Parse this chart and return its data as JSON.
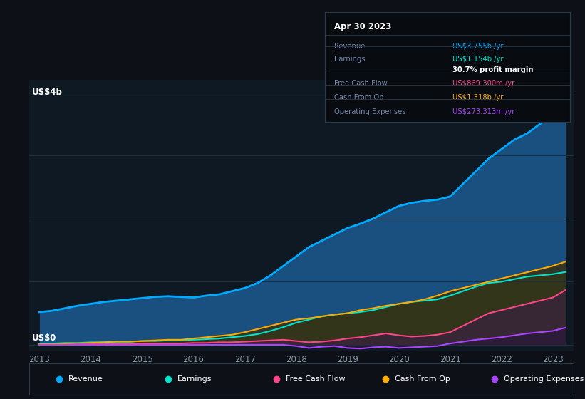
{
  "background_color": "#0d1117",
  "chart_bg_color": "#0f1923",
  "grid_color": "#1e2d3d",
  "text_color": "#8899a6",
  "years": [
    2013,
    2013.25,
    2013.5,
    2013.75,
    2014,
    2014.25,
    2014.5,
    2014.75,
    2015,
    2015.25,
    2015.5,
    2015.75,
    2016,
    2016.25,
    2016.5,
    2016.75,
    2017,
    2017.25,
    2017.5,
    2017.75,
    2018,
    2018.25,
    2018.5,
    2018.75,
    2019,
    2019.25,
    2019.5,
    2019.75,
    2020,
    2020.25,
    2020.5,
    2020.75,
    2021,
    2021.25,
    2021.5,
    2021.75,
    2022,
    2022.25,
    2022.5,
    2022.75,
    2023,
    2023.25
  ],
  "revenue": [
    0.52,
    0.54,
    0.58,
    0.62,
    0.65,
    0.68,
    0.7,
    0.72,
    0.74,
    0.76,
    0.77,
    0.76,
    0.75,
    0.78,
    0.8,
    0.85,
    0.9,
    0.98,
    1.1,
    1.25,
    1.4,
    1.55,
    1.65,
    1.75,
    1.85,
    1.92,
    2.0,
    2.1,
    2.2,
    2.25,
    2.28,
    2.3,
    2.35,
    2.55,
    2.75,
    2.95,
    3.1,
    3.25,
    3.35,
    3.5,
    3.65,
    3.755
  ],
  "earnings": [
    0.02,
    0.02,
    0.03,
    0.03,
    0.04,
    0.04,
    0.05,
    0.05,
    0.06,
    0.06,
    0.07,
    0.07,
    0.08,
    0.09,
    0.1,
    0.12,
    0.14,
    0.17,
    0.22,
    0.28,
    0.35,
    0.4,
    0.45,
    0.48,
    0.5,
    0.52,
    0.55,
    0.6,
    0.65,
    0.68,
    0.7,
    0.72,
    0.78,
    0.85,
    0.92,
    0.98,
    1.0,
    1.04,
    1.08,
    1.1,
    1.12,
    1.154
  ],
  "free_cash_flow": [
    0.0,
    0.0,
    0.0,
    0.01,
    0.01,
    0.01,
    0.01,
    0.01,
    0.02,
    0.02,
    0.02,
    0.02,
    0.03,
    0.03,
    0.04,
    0.04,
    0.05,
    0.06,
    0.07,
    0.08,
    0.06,
    0.04,
    0.05,
    0.07,
    0.1,
    0.12,
    0.15,
    0.18,
    0.15,
    0.13,
    0.14,
    0.16,
    0.2,
    0.3,
    0.4,
    0.5,
    0.55,
    0.6,
    0.65,
    0.7,
    0.75,
    0.869
  ],
  "cash_from_op": [
    0.01,
    0.01,
    0.02,
    0.02,
    0.03,
    0.04,
    0.05,
    0.05,
    0.06,
    0.07,
    0.08,
    0.08,
    0.1,
    0.12,
    0.14,
    0.16,
    0.2,
    0.25,
    0.3,
    0.35,
    0.4,
    0.42,
    0.45,
    0.48,
    0.5,
    0.55,
    0.58,
    0.62,
    0.65,
    0.68,
    0.72,
    0.78,
    0.85,
    0.9,
    0.95,
    1.0,
    1.05,
    1.1,
    1.15,
    1.2,
    1.25,
    1.318
  ],
  "operating_expenses": [
    0.0,
    0.0,
    0.0,
    0.0,
    0.0,
    0.0,
    0.0,
    0.0,
    0.0,
    0.0,
    0.0,
    0.0,
    0.0,
    0.0,
    0.0,
    0.0,
    0.0,
    0.0,
    0.0,
    0.0,
    -0.02,
    -0.05,
    -0.03,
    -0.02,
    -0.05,
    -0.06,
    -0.04,
    -0.03,
    -0.05,
    -0.04,
    -0.03,
    -0.02,
    0.02,
    0.05,
    0.08,
    0.1,
    0.12,
    0.15,
    0.18,
    0.2,
    0.22,
    0.273
  ],
  "revenue_color": "#00aaff",
  "revenue_fill": "#1a5080",
  "earnings_color": "#00e5cc",
  "earnings_fill": "#1a4a44",
  "free_cash_flow_color": "#ff4488",
  "free_cash_flow_fill": "#3a2040",
  "cash_from_op_color": "#ffaa00",
  "cash_from_op_fill": "#3a3010",
  "operating_expenses_color": "#aa44ff",
  "operating_expenses_fill": "#2a1a3a",
  "ylim": [
    -0.1,
    4.2
  ],
  "ytick_values": [
    0,
    1,
    2,
    3,
    4
  ],
  "y_label_top": "US$4b",
  "y_label_bottom": "US$0",
  "xtick_labels": [
    "2013",
    "2014",
    "2015",
    "2016",
    "2017",
    "2018",
    "2019",
    "2020",
    "2021",
    "2022",
    "2023"
  ],
  "xtick_values": [
    2013,
    2014,
    2015,
    2016,
    2017,
    2018,
    2019,
    2020,
    2021,
    2022,
    2023
  ],
  "info_box": {
    "title": "Apr 30 2023",
    "rows": [
      {
        "label": "Revenue",
        "value": "US$3.755b /yr",
        "value_color": "#00aaff"
      },
      {
        "label": "Earnings",
        "value": "US$1.154b /yr",
        "value_color": "#00e5cc"
      },
      {
        "label": "",
        "value": "30.7% profit margin",
        "value_color": "#ffffff"
      },
      {
        "label": "Free Cash Flow",
        "value": "US$869.300m /yr",
        "value_color": "#ff4488"
      },
      {
        "label": "Cash From Op",
        "value": "US$1.318b /yr",
        "value_color": "#ffaa00"
      },
      {
        "label": "Operating Expenses",
        "value": "US$273.313m /yr",
        "value_color": "#aa44ff"
      }
    ]
  },
  "legend_items": [
    {
      "label": "Revenue",
      "color": "#00aaff"
    },
    {
      "label": "Earnings",
      "color": "#00e5cc"
    },
    {
      "label": "Free Cash Flow",
      "color": "#ff4488"
    },
    {
      "label": "Cash From Op",
      "color": "#ffaa00"
    },
    {
      "label": "Operating Expenses",
      "color": "#aa44ff"
    }
  ]
}
